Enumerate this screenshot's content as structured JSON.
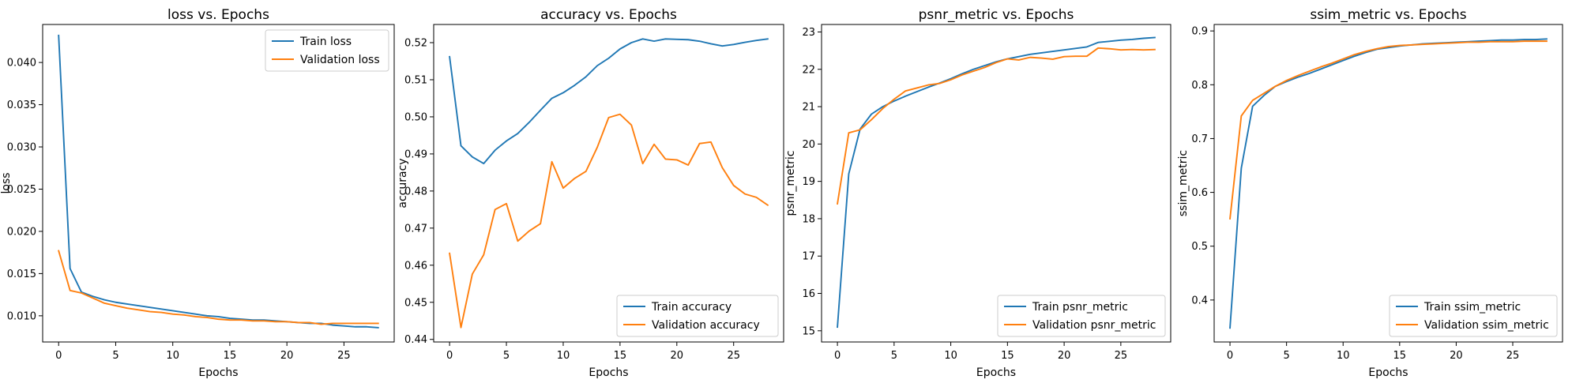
{
  "chart_data": [
    {
      "type": "line",
      "title": "loss vs. Epochs",
      "xlabel": "Epochs",
      "ylabel": "loss",
      "xlim": [
        -1.4,
        29.4
      ],
      "ylim": [
        0.0069,
        0.0445
      ],
      "xticks": [
        0,
        5,
        10,
        15,
        20,
        25
      ],
      "xtick_labels": [
        "0",
        "5",
        "10",
        "15",
        "20",
        "25"
      ],
      "yticks": [
        0.01,
        0.015,
        0.02,
        0.025,
        0.03,
        0.035,
        0.04
      ],
      "ytick_labels": [
        "0.010",
        "0.015",
        "0.020",
        "0.025",
        "0.030",
        "0.035",
        "0.040"
      ],
      "grid": false,
      "legend_position": "top-right",
      "x": [
        0,
        1,
        2,
        3,
        4,
        5,
        6,
        7,
        8,
        9,
        10,
        11,
        12,
        13,
        14,
        15,
        16,
        17,
        18,
        19,
        20,
        21,
        22,
        23,
        24,
        25,
        26,
        27,
        28
      ],
      "series": [
        {
          "name": "Train loss",
          "color": "#1f77b4",
          "values": [
            0.0432,
            0.0156,
            0.0128,
            0.0123,
            0.0119,
            0.0116,
            0.0114,
            0.0112,
            0.011,
            0.0108,
            0.0106,
            0.0104,
            0.0102,
            0.01,
            0.0099,
            0.0097,
            0.0096,
            0.0095,
            0.0095,
            0.0094,
            0.0093,
            0.0092,
            0.0091,
            0.0091,
            0.0089,
            0.0088,
            0.0087,
            0.0087,
            0.0086
          ]
        },
        {
          "name": "Validation loss",
          "color": "#ff7f0e",
          "values": [
            0.0177,
            0.013,
            0.0127,
            0.0121,
            0.0115,
            0.0112,
            0.0109,
            0.0107,
            0.0105,
            0.0104,
            0.0102,
            0.0101,
            0.0099,
            0.0098,
            0.0096,
            0.0095,
            0.0095,
            0.0094,
            0.0094,
            0.0093,
            0.0093,
            0.0092,
            0.0092,
            0.009,
            0.0091,
            0.0091,
            0.0091,
            0.0091,
            0.0091
          ]
        }
      ]
    },
    {
      "type": "line",
      "title": "accuracy vs. Epochs",
      "xlabel": "Epochs",
      "ylabel": "accuracy",
      "xlim": [
        -1.4,
        29.4
      ],
      "ylim": [
        0.4393,
        0.5249
      ],
      "xticks": [
        0,
        5,
        10,
        15,
        20,
        25
      ],
      "xtick_labels": [
        "0",
        "5",
        "10",
        "15",
        "20",
        "25"
      ],
      "yticks": [
        0.44,
        0.45,
        0.46,
        0.47,
        0.48,
        0.49,
        0.5,
        0.51,
        0.52
      ],
      "ytick_labels": [
        "0.44",
        "0.45",
        "0.46",
        "0.47",
        "0.48",
        "0.49",
        "0.50",
        "0.51",
        "0.52"
      ],
      "grid": false,
      "legend_position": "bottom-right",
      "x": [
        0,
        1,
        2,
        3,
        4,
        5,
        6,
        7,
        8,
        9,
        10,
        11,
        12,
        13,
        14,
        15,
        16,
        17,
        18,
        19,
        20,
        21,
        22,
        23,
        24,
        25,
        26,
        27,
        28
      ],
      "series": [
        {
          "name": "Train accuracy",
          "color": "#1f77b4",
          "values": [
            0.5162,
            0.4922,
            0.4892,
            0.4874,
            0.491,
            0.4935,
            0.4955,
            0.4985,
            0.5018,
            0.505,
            0.5065,
            0.5085,
            0.5108,
            0.5138,
            0.5158,
            0.5183,
            0.52,
            0.521,
            0.5204,
            0.521,
            0.5209,
            0.5208,
            0.5204,
            0.5197,
            0.5191,
            0.5195,
            0.5201,
            0.5206,
            0.521
          ]
        },
        {
          "name": "Validation accuracy",
          "color": "#ff7f0e",
          "values": [
            0.4632,
            0.4432,
            0.4576,
            0.4628,
            0.475,
            0.4766,
            0.4665,
            0.4692,
            0.4712,
            0.4879,
            0.4808,
            0.4834,
            0.4853,
            0.4918,
            0.4998,
            0.5007,
            0.4978,
            0.4874,
            0.4926,
            0.4886,
            0.4884,
            0.487,
            0.4928,
            0.4932,
            0.4863,
            0.4815,
            0.4792,
            0.4783,
            0.4762
          ]
        }
      ]
    },
    {
      "type": "line",
      "title": "psnr_metric vs. Epochs",
      "xlabel": "Epochs",
      "ylabel": "psnr_metric",
      "xlim": [
        -1.4,
        29.4
      ],
      "ylim": [
        14.7,
        23.2
      ],
      "xticks": [
        0,
        5,
        10,
        15,
        20,
        25
      ],
      "xtick_labels": [
        "0",
        "5",
        "10",
        "15",
        "20",
        "25"
      ],
      "yticks": [
        15,
        16,
        17,
        18,
        19,
        20,
        21,
        22,
        23
      ],
      "ytick_labels": [
        "15",
        "16",
        "17",
        "18",
        "19",
        "20",
        "21",
        "22",
        "23"
      ],
      "grid": false,
      "legend_position": "bottom-right",
      "x": [
        0,
        1,
        2,
        3,
        4,
        5,
        6,
        7,
        8,
        9,
        10,
        11,
        12,
        13,
        14,
        15,
        16,
        17,
        18,
        19,
        20,
        21,
        22,
        23,
        24,
        25,
        26,
        27,
        28
      ],
      "series": [
        {
          "name": "Train psnr_metric",
          "color": "#1f77b4",
          "values": [
            15.1,
            19.2,
            20.4,
            20.8,
            21.0,
            21.15,
            21.28,
            21.4,
            21.52,
            21.63,
            21.75,
            21.88,
            22.0,
            22.1,
            22.2,
            22.28,
            22.34,
            22.4,
            22.44,
            22.48,
            22.52,
            22.56,
            22.6,
            22.72,
            22.75,
            22.78,
            22.8,
            22.83,
            22.85
          ]
        },
        {
          "name": "Validation psnr_metric",
          "color": "#ff7f0e",
          "values": [
            18.4,
            20.3,
            20.38,
            20.65,
            20.95,
            21.2,
            21.42,
            21.5,
            21.58,
            21.62,
            21.72,
            21.85,
            21.95,
            22.05,
            22.18,
            22.28,
            22.25,
            22.32,
            22.3,
            22.27,
            22.34,
            22.35,
            22.35,
            22.57,
            22.55,
            22.52,
            22.53,
            22.52,
            22.53
          ]
        }
      ]
    },
    {
      "type": "line",
      "title": "ssim_metric vs. Epochs",
      "xlabel": "Epochs",
      "ylabel": "ssim_metric",
      "xlim": [
        -1.4,
        29.4
      ],
      "ylim": [
        0.322,
        0.912
      ],
      "xticks": [
        0,
        5,
        10,
        15,
        20,
        25
      ],
      "xtick_labels": [
        "0",
        "5",
        "10",
        "15",
        "20",
        "25"
      ],
      "yticks": [
        0.4,
        0.5,
        0.6,
        0.7,
        0.8,
        0.9
      ],
      "ytick_labels": [
        "0.4",
        "0.5",
        "0.6",
        "0.7",
        "0.8",
        "0.9"
      ],
      "grid": false,
      "legend_position": "bottom-right",
      "x": [
        0,
        1,
        2,
        3,
        4,
        5,
        6,
        7,
        8,
        9,
        10,
        11,
        12,
        13,
        14,
        15,
        16,
        17,
        18,
        19,
        20,
        21,
        22,
        23,
        24,
        25,
        26,
        27,
        28
      ],
      "series": [
        {
          "name": "Train ssim_metric",
          "color": "#1f77b4",
          "values": [
            0.348,
            0.645,
            0.76,
            0.78,
            0.797,
            0.806,
            0.814,
            0.821,
            0.829,
            0.837,
            0.845,
            0.853,
            0.86,
            0.866,
            0.869,
            0.872,
            0.874,
            0.876,
            0.877,
            0.878,
            0.879,
            0.88,
            0.881,
            0.882,
            0.883,
            0.883,
            0.884,
            0.884,
            0.885
          ]
        },
        {
          "name": "Validation ssim_metric",
          "color": "#ff7f0e",
          "values": [
            0.551,
            0.742,
            0.771,
            0.784,
            0.797,
            0.808,
            0.817,
            0.825,
            0.833,
            0.84,
            0.848,
            0.856,
            0.862,
            0.867,
            0.871,
            0.873,
            0.874,
            0.875,
            0.876,
            0.877,
            0.878,
            0.879,
            0.879,
            0.88,
            0.88,
            0.88,
            0.881,
            0.881,
            0.881
          ]
        }
      ]
    }
  ]
}
